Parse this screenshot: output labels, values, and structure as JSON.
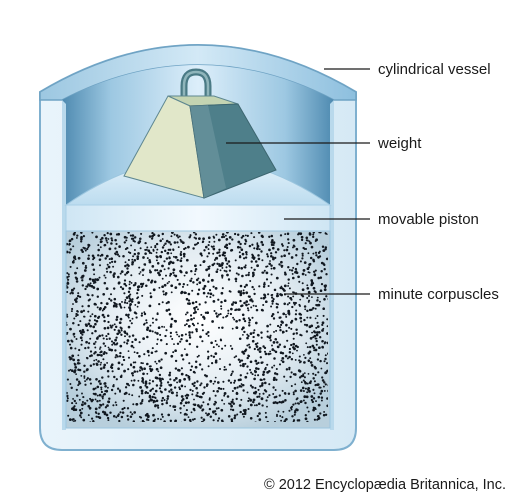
{
  "labels": {
    "vessel": "cylindrical vessel",
    "weight": "weight",
    "piston": "movable piston",
    "corpuscles": "minute corpuscles"
  },
  "credit": "© 2012 Encyclopædia Britannica, Inc.",
  "colors": {
    "vessel_outer": "#a9cfe6",
    "vessel_wall": "#e6f2fa",
    "vessel_edge": "#6fa3c4",
    "interior": "#b5d8ea",
    "piston_top": "#c8e4f3",
    "piston_face": "#e4f2fb",
    "gas": "#dbe5ec",
    "dots": "#111820",
    "weight_light": "#e1e7c9",
    "weight_dark": "#4a7a85",
    "weight_mid": "#8eb0b5"
  }
}
